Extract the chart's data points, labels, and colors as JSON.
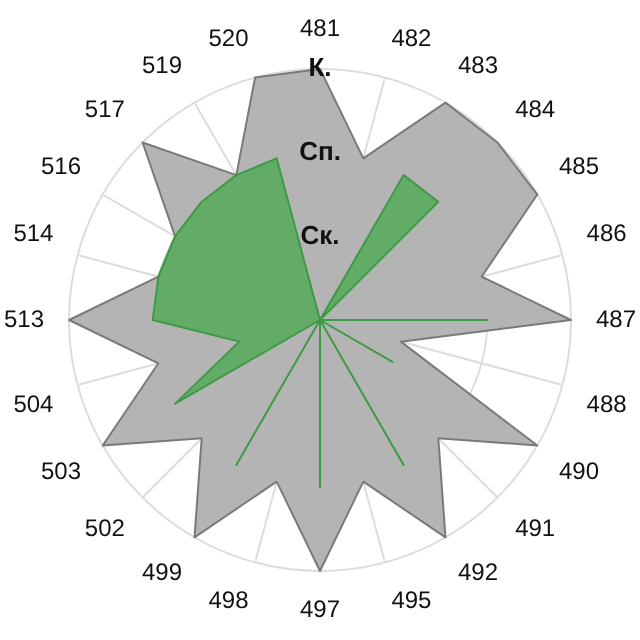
{
  "chart_data": {
    "type": "radar",
    "categories": [
      "481",
      "482",
      "483",
      "484",
      "485",
      "486",
      "487",
      "488",
      "490",
      "491",
      "492",
      "495",
      "497",
      "498",
      "499",
      "502",
      "503",
      "504",
      "513",
      "514",
      "516",
      "517",
      "519",
      "520"
    ],
    "series": [
      {
        "color": "#b4b4b4",
        "values": [
          3,
          2,
          3,
          3,
          3,
          2,
          3,
          1,
          3,
          2,
          3,
          2,
          3,
          2,
          3,
          2,
          3,
          2,
          3,
          2,
          2,
          3,
          2,
          3
        ]
      },
      {
        "color": "#5aab5f",
        "values": [
          0,
          0,
          2,
          2,
          0,
          0,
          2,
          0,
          1,
          0,
          2,
          0,
          2,
          0,
          2,
          0,
          2,
          1,
          2,
          2,
          2,
          2,
          2,
          2
        ]
      }
    ],
    "ylim": [
      0,
      3
    ],
    "yticks": [
      {
        "value": 1,
        "label": "Ск."
      },
      {
        "value": 2,
        "label": "Сп."
      },
      {
        "value": 3,
        "label": "К."
      }
    ],
    "grid": true,
    "legend": false
  }
}
